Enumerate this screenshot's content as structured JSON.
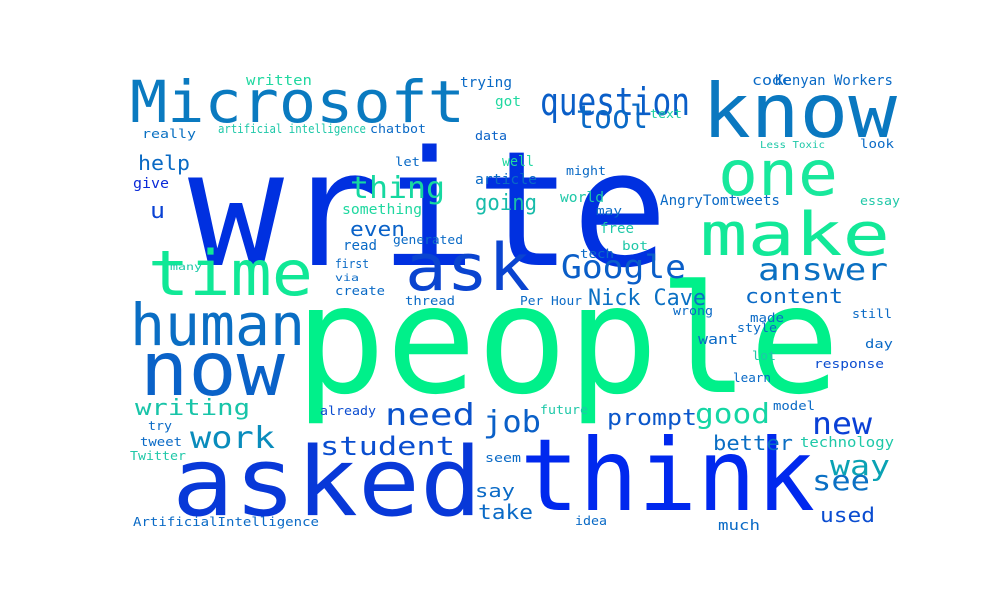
{
  "words": [
    {
      "text": "write",
      "color": "#0030e0"
    },
    {
      "text": "people",
      "color": "#00f08a"
    },
    {
      "text": "think",
      "color": "#0028ee"
    },
    {
      "text": "asked",
      "color": "#0838d8"
    },
    {
      "text": "know",
      "color": "#0a78c0"
    },
    {
      "text": "Microsoft",
      "color": "#0a7ac0"
    },
    {
      "text": "now",
      "color": "#0a62c8"
    },
    {
      "text": "human",
      "color": "#0a6ec4"
    },
    {
      "text": "time",
      "color": "#10e896"
    },
    {
      "text": "ask",
      "color": "#0a44d0"
    },
    {
      "text": "make",
      "color": "#12e898"
    },
    {
      "text": "one",
      "color": "#18e89c"
    },
    {
      "text": "question",
      "color": "#0a5ec8"
    },
    {
      "text": "tool",
      "color": "#0a6ac6"
    },
    {
      "text": "Google",
      "color": "#0a5ec8"
    },
    {
      "text": "answer",
      "color": "#0a70c2"
    },
    {
      "text": "thing",
      "color": "#16d8a0"
    },
    {
      "text": "need",
      "color": "#0a52cc"
    },
    {
      "text": "job",
      "color": "#0a60c8"
    },
    {
      "text": "work",
      "color": "#0a8cbc"
    },
    {
      "text": "student",
      "color": "#0a4ed0"
    },
    {
      "text": "new",
      "color": "#0a40d6"
    },
    {
      "text": "good",
      "color": "#14d6a4"
    },
    {
      "text": "way",
      "color": "#0aa2b4"
    },
    {
      "text": "see",
      "color": "#0a70c4"
    },
    {
      "text": "writing",
      "color": "#18c4a8"
    },
    {
      "text": "Nick Cave",
      "color": "#0a70c4"
    },
    {
      "text": "content",
      "color": "#0a6ac6"
    },
    {
      "text": "prompt",
      "color": "#0a56ca"
    },
    {
      "text": "better",
      "color": "#0a6ec4"
    },
    {
      "text": "help",
      "color": "#0a6ac4"
    },
    {
      "text": "u",
      "color": "#0a42d4"
    },
    {
      "text": "even",
      "color": "#0a62c8"
    },
    {
      "text": "going",
      "color": "#18bcaa"
    },
    {
      "text": "say",
      "color": "#0a6ac6"
    },
    {
      "text": "take",
      "color": "#0a6ac6"
    },
    {
      "text": "used",
      "color": "#0a4cd0"
    },
    {
      "text": "written",
      "color": "#20d8a0"
    },
    {
      "text": "really",
      "color": "#0a70c2"
    },
    {
      "text": "artificial intelligence",
      "color": "#1ec8a8"
    },
    {
      "text": "chatbot",
      "color": "#0a6ac6"
    },
    {
      "text": "trying",
      "color": "#0a6ac6"
    },
    {
      "text": "got",
      "color": "#20d8a0"
    },
    {
      "text": "text",
      "color": "#1ed0a4"
    },
    {
      "text": "code",
      "color": "#0a6ac6"
    },
    {
      "text": "Kenyan Workers",
      "color": "#0a6ac6"
    },
    {
      "text": "data",
      "color": "#0a62c8"
    },
    {
      "text": "Less Toxic",
      "color": "#1ec8a8"
    },
    {
      "text": "look",
      "color": "#0a6ac6"
    },
    {
      "text": "let",
      "color": "#0a6ac6"
    },
    {
      "text": "well",
      "color": "#20d8a0"
    },
    {
      "text": "might",
      "color": "#0a6ac6"
    },
    {
      "text": "article",
      "color": "#0a6ac6"
    },
    {
      "text": "world",
      "color": "#1ec8a8"
    },
    {
      "text": "something",
      "color": "#20d8a0"
    },
    {
      "text": "may",
      "color": "#0a6ac6"
    },
    {
      "text": "AngryTomtweets",
      "color": "#0a6ac6"
    },
    {
      "text": "essay",
      "color": "#20c8a8"
    },
    {
      "text": "free",
      "color": "#20c8a8"
    },
    {
      "text": "give",
      "color": "#0a2ad8"
    },
    {
      "text": "read",
      "color": "#0a6ac6"
    },
    {
      "text": "generated",
      "color": "#0a6ac6"
    },
    {
      "text": "bot",
      "color": "#1ec8a8"
    },
    {
      "text": "tech",
      "color": "#0a6ac6"
    },
    {
      "text": "first",
      "color": "#0a6ac6"
    },
    {
      "text": "via",
      "color": "#0a6ac6"
    },
    {
      "text": "many",
      "color": "#1ec8a8"
    },
    {
      "text": "create",
      "color": "#0a6ac6"
    },
    {
      "text": "thread",
      "color": "#0a6ac6"
    },
    {
      "text": "Per Hour",
      "color": "#0a6ac6"
    },
    {
      "text": "wrong",
      "color": "#0a6ac6"
    },
    {
      "text": "made",
      "color": "#0a6ac6"
    },
    {
      "text": "still",
      "color": "#0a6ac6"
    },
    {
      "text": "style",
      "color": "#0a6ac6"
    },
    {
      "text": "want",
      "color": "#0a6ac6"
    },
    {
      "text": "day",
      "color": "#0a6ac6"
    },
    {
      "text": "lot",
      "color": "#1ec8a8"
    },
    {
      "text": "response",
      "color": "#0a4cd0"
    },
    {
      "text": "learn",
      "color": "#0a6ac6"
    },
    {
      "text": "already",
      "color": "#0a4cd0"
    },
    {
      "text": "future",
      "color": "#1ec8a8"
    },
    {
      "text": "model",
      "color": "#0a6ac6"
    },
    {
      "text": "technology",
      "color": "#1ec8a8"
    },
    {
      "text": "try",
      "color": "#0a6ac6"
    },
    {
      "text": "tweet",
      "color": "#0a6ac6"
    },
    {
      "text": "Twitter",
      "color": "#20c8a8"
    },
    {
      "text": "seem",
      "color": "#0a6ac6"
    },
    {
      "text": "ArtificialIntelligence",
      "color": "#0a6ac6"
    },
    {
      "text": "idea",
      "color": "#0a6ac6"
    },
    {
      "text": "much",
      "color": "#0a6ac6"
    }
  ]
}
